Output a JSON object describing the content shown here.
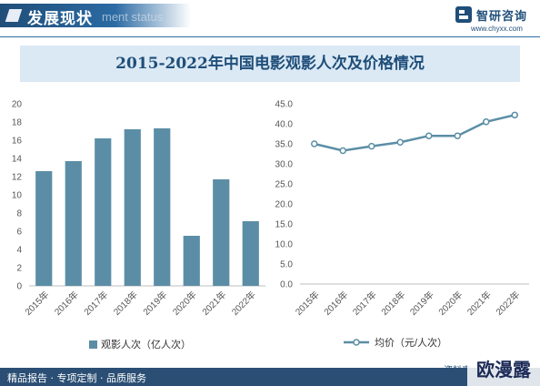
{
  "header": {
    "title": "发展现状",
    "subtitle": "ment status",
    "brand_name": "智研咨询",
    "brand_url": "www.chyxx.com"
  },
  "footer": {
    "text": "精品报告 · 专项定制 · 品质服务",
    "source_label": "资料来",
    "stamp": "欧漫露"
  },
  "colors": {
    "bar": "#5b8ea6",
    "line": "#5b8ea6",
    "marker_fill": "#ffffff",
    "banner": "#dbe9f5",
    "title": "#1f4e79"
  },
  "chart_data": [
    {
      "type": "bar",
      "title": "2015-2022年中国电影观影人次及价格情况",
      "categories": [
        "2015年",
        "2016年",
        "2017年",
        "2018年",
        "2019年",
        "2020年",
        "2021年",
        "2022年"
      ],
      "series": [
        {
          "name": "观影人次（亿人次）",
          "values": [
            12.6,
            13.7,
            16.2,
            17.2,
            17.3,
            5.5,
            11.7,
            7.1
          ]
        }
      ],
      "yticks": [
        "0",
        "2",
        "4",
        "6",
        "8",
        "10",
        "12",
        "14",
        "16",
        "18",
        "20"
      ],
      "ylim": [
        0,
        20
      ],
      "legend_position": "bottom",
      "grid": false
    },
    {
      "type": "line",
      "categories": [
        "2015年",
        "2016年",
        "2017年",
        "2018年",
        "2019年",
        "2020年",
        "2021年",
        "2022年"
      ],
      "series": [
        {
          "name": "均价（元/人次）",
          "values": [
            35.0,
            33.3,
            34.4,
            35.4,
            37.0,
            37.0,
            40.5,
            42.2
          ]
        }
      ],
      "yticks": [
        "0.0",
        "5.0",
        "10.0",
        "15.0",
        "20.0",
        "25.0",
        "30.0",
        "35.0",
        "40.0",
        "45.0"
      ],
      "ylim": [
        0,
        45
      ],
      "legend_position": "bottom",
      "grid": false
    }
  ]
}
